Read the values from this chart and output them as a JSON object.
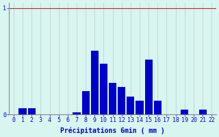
{
  "categories": [
    0,
    1,
    2,
    3,
    4,
    5,
    6,
    7,
    8,
    9,
    10,
    11,
    12,
    13,
    14,
    15,
    16,
    17,
    18,
    19,
    20,
    21,
    22
  ],
  "values": [
    0,
    0.06,
    0.06,
    0,
    0,
    0,
    0,
    0.02,
    0.22,
    0.6,
    0.48,
    0.3,
    0.26,
    0.17,
    0.13,
    0.52,
    0.13,
    0,
    0,
    0.05,
    0,
    0.05,
    0
  ],
  "bar_color": "#0000cc",
  "background_color": "#d8f5f0",
  "grid_color_x": "#b8cece",
  "grid_color_y": "#cc2222",
  "axis_color": "#888888",
  "text_color": "#0000cc",
  "xlabel": "Précipitations 6min ( mm )",
  "ytick_labels": [
    "0",
    "1"
  ],
  "ytick_vals": [
    0,
    1
  ],
  "ylim": [
    0,
    1.05
  ],
  "xlim": [
    -0.5,
    22.5
  ],
  "xlabel_fontsize": 7,
  "tick_fontsize": 6,
  "bar_width": 0.85
}
